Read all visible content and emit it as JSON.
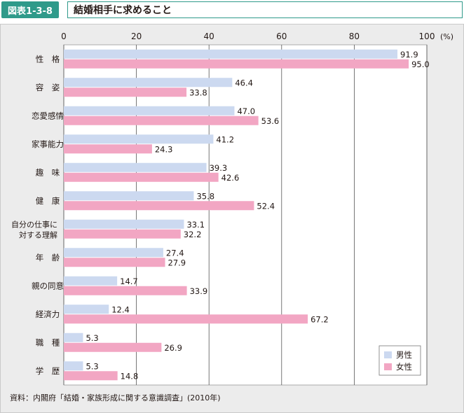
{
  "header": {
    "figure_label": "図表1-3-8",
    "title": "結婚相手に求めること"
  },
  "source": "資料：内閣府「結婚・家族形成に関する意識調査」(2010年)",
  "colors": {
    "male": "#ccd9f0",
    "female": "#f2a6c3",
    "panel": "#ececec",
    "plot": "#ffffff",
    "grid": "#555555"
  },
  "chart_data": {
    "type": "bar",
    "orientation": "horizontal",
    "title": "",
    "xlabel": "",
    "ylabel": "",
    "xlim": [
      0,
      100
    ],
    "ticks": [
      0,
      20,
      40,
      60,
      80,
      100
    ],
    "unit": "(%)",
    "grid": true,
    "legend_position": "bottom-right",
    "categories": [
      [
        "性　格"
      ],
      [
        "容　姿"
      ],
      [
        "恋愛感情"
      ],
      [
        "家事能力"
      ],
      [
        "趣　味"
      ],
      [
        "健　康"
      ],
      [
        "自分の仕事に",
        "対する理解"
      ],
      [
        "年　齢"
      ],
      [
        "親の同意"
      ],
      [
        "経済力"
      ],
      [
        "職　種"
      ],
      [
        "学　歴"
      ]
    ],
    "series": [
      {
        "name": "男性",
        "values": [
          91.9,
          46.4,
          47.0,
          41.2,
          39.3,
          35.8,
          33.1,
          27.4,
          14.7,
          12.4,
          5.3,
          5.3
        ],
        "labels": [
          "91.9",
          "46.4",
          "47.0",
          "41.2",
          "39.3",
          "35.8",
          "33.1",
          "27.4",
          "14.7",
          "12.4",
          "5.3",
          "5.3"
        ]
      },
      {
        "name": "女性",
        "values": [
          95.0,
          33.8,
          53.6,
          24.3,
          42.6,
          52.4,
          32.2,
          27.9,
          33.9,
          67.2,
          26.9,
          14.8
        ],
        "labels": [
          "95.0",
          "33.8",
          "53.6",
          "24.3",
          "42.6",
          "52.4",
          "32.2",
          "27.9",
          "33.9",
          "67.2",
          "26.9",
          "14.8"
        ]
      }
    ]
  }
}
